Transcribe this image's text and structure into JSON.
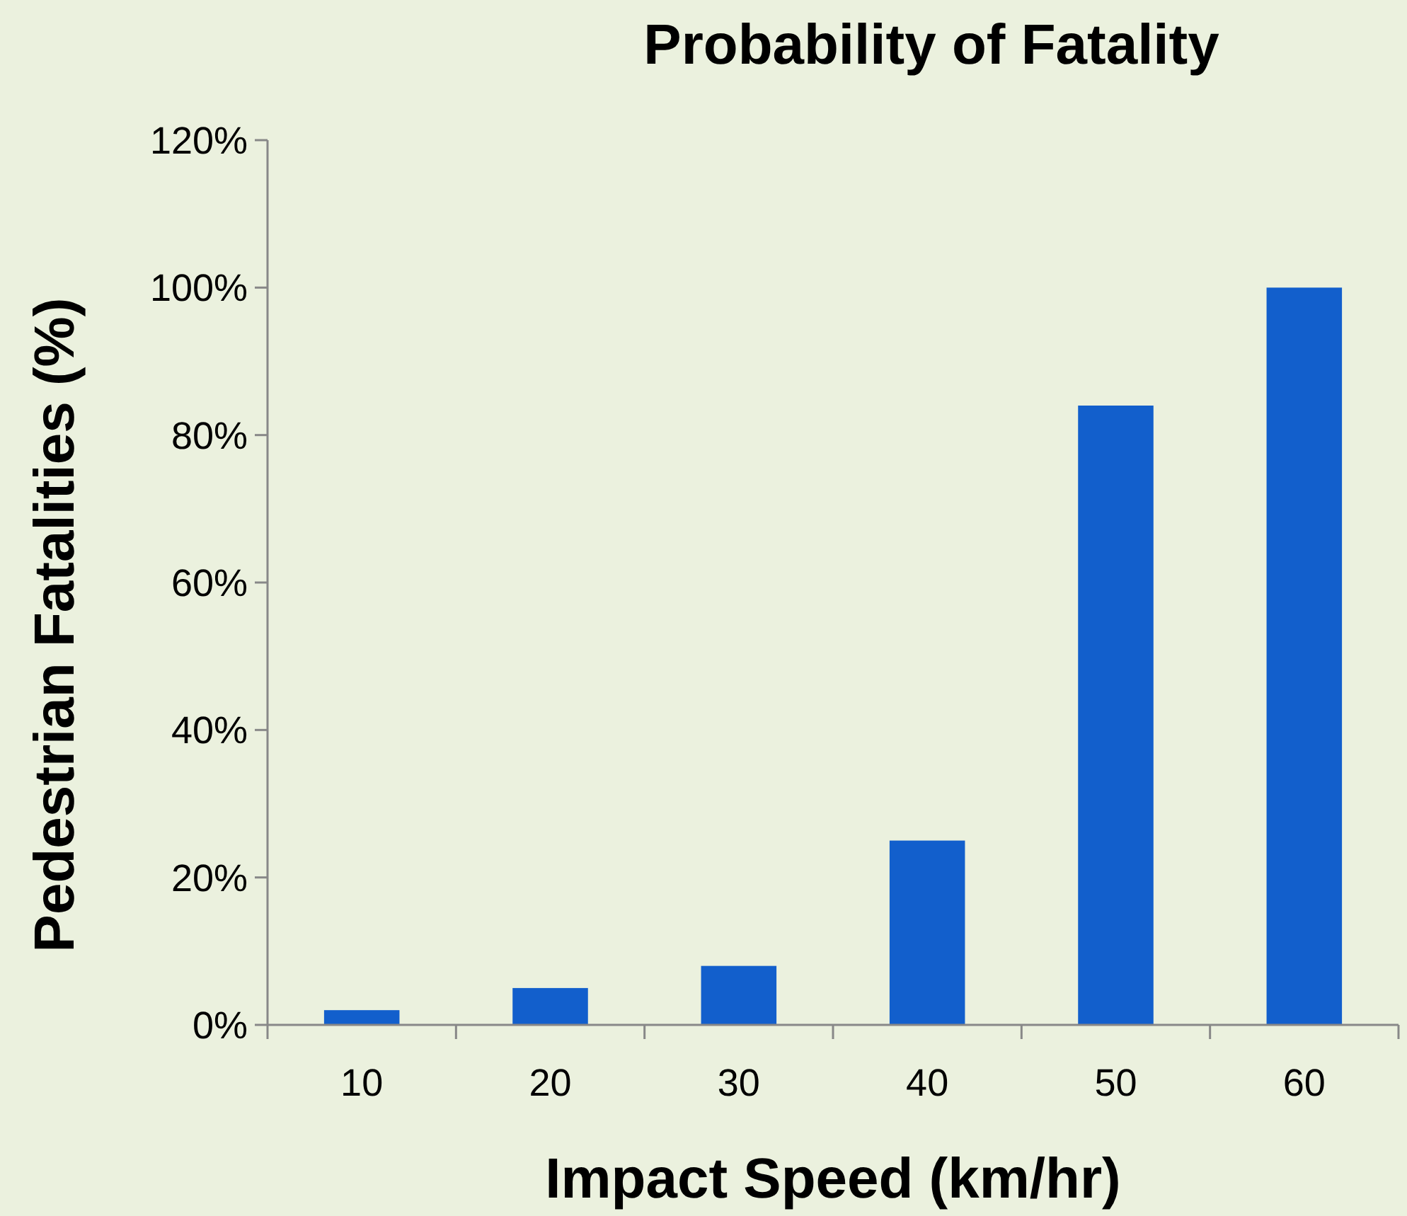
{
  "chart_data": {
    "type": "bar",
    "title": "Probability of Fatality",
    "xlabel": "Impact Speed (km/hr)",
    "ylabel": "Pedestrian Fatalities (%)",
    "categories": [
      "10",
      "20",
      "30",
      "40",
      "50",
      "60"
    ],
    "values": [
      2,
      5,
      8,
      25,
      84,
      100
    ],
    "color": "#125fcc",
    "ylim": [
      0,
      120
    ],
    "yticks": [
      {
        "value": 0,
        "label": "0%"
      },
      {
        "value": 20,
        "label": "20%"
      },
      {
        "value": 40,
        "label": "40%"
      },
      {
        "value": 60,
        "label": "60%"
      },
      {
        "value": 80,
        "label": "80%"
      },
      {
        "value": 100,
        "label": "100%"
      },
      {
        "value": 120,
        "label": "120%"
      }
    ],
    "grid": false
  }
}
